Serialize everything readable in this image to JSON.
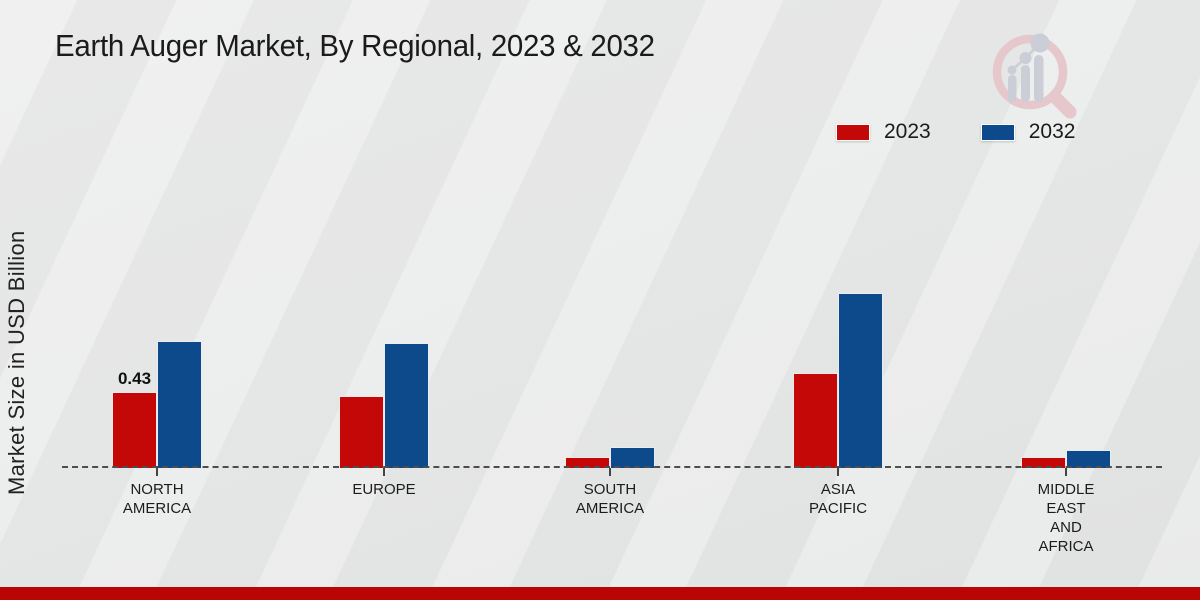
{
  "header": {
    "title": "Earth Auger Market, By Regional, 2023 & 2032"
  },
  "watermark": {
    "name": "market-research-future-logo"
  },
  "chart_data": {
    "type": "bar",
    "title": "Earth Auger Market, By Regional, 2023 & 2032",
    "xlabel": "",
    "ylabel": "Market Size in USD Billion",
    "unit": "USD Billion",
    "categories": [
      "NORTH AMERICA",
      "EUROPE",
      "SOUTH AMERICA",
      "ASIA PACIFIC",
      "MIDDLE EAST AND AFRICA"
    ],
    "category_lines": [
      [
        "NORTH",
        "AMERICA"
      ],
      [
        "EUROPE"
      ],
      [
        "SOUTH",
        "AMERICA"
      ],
      [
        "ASIA",
        "PACIFIC"
      ],
      [
        "MIDDLE",
        "EAST",
        "AND",
        "AFRICA"
      ]
    ],
    "series": [
      {
        "name": "2023",
        "color": "#c40808",
        "values": [
          0.43,
          0.41,
          0.06,
          0.54,
          0.06
        ]
      },
      {
        "name": "2032",
        "color": "#0d4a8c",
        "values": [
          0.72,
          0.71,
          0.12,
          0.99,
          0.1
        ]
      }
    ],
    "data_labels": [
      {
        "series": "2023",
        "category_index": 0,
        "text": "0.43"
      }
    ],
    "ylim": [
      0,
      1.1
    ],
    "grid": false,
    "legend_position": "top-right",
    "baseline_style": "dashed"
  },
  "colors": {
    "background": "#e9eaea",
    "footer_bar": "#b90503",
    "axis_dash": "#4d4d4d",
    "text": "#1b1b1b",
    "logo_pink": "#e6c8cc",
    "logo_gray": "#cbced6"
  }
}
